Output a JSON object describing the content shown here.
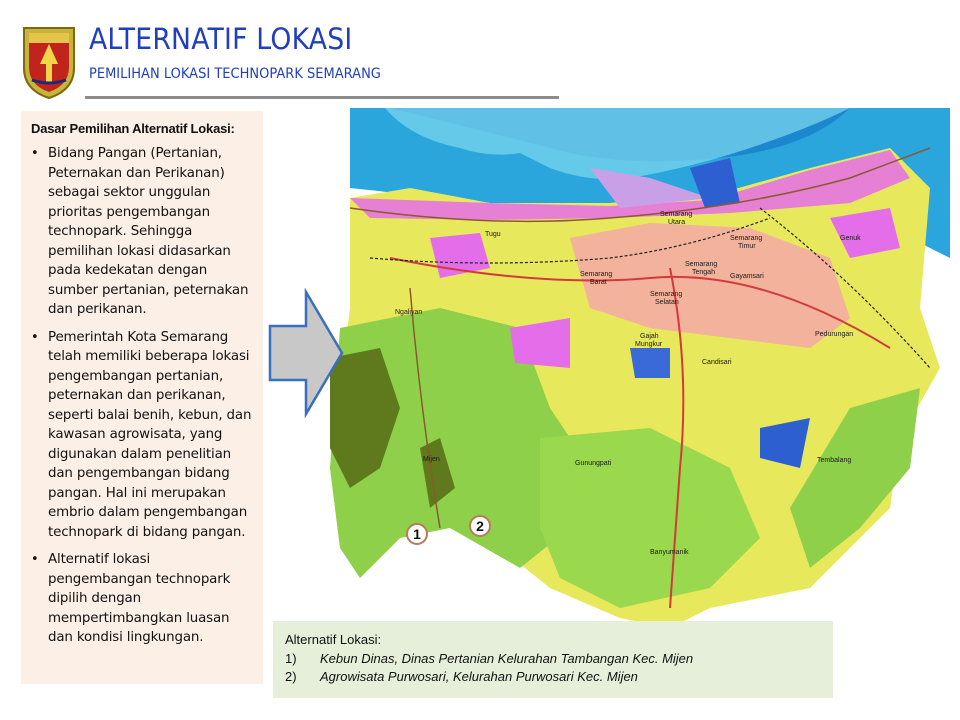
{
  "header": {
    "title": "ALTERNATIF LOKASI",
    "subtitle": "PEMILIHAN LOKASI TECHNOPARK SEMARANG"
  },
  "left_panel": {
    "heading": "Dasar Pemilihan Alternatif Lokasi:",
    "bullets": [
      "Bidang Pangan (Pertanian, Peternakan dan Perikanan) sebagai sektor unggulan prioritas pengembangan technopark. Sehingga pemilihan lokasi didasarkan pada kedekatan dengan sumber pertanian, peternakan dan perikanan.",
      "Pemerintah Kota Semarang telah memiliki beberapa lokasi pengembangan pertanian, peternakan dan perikanan, seperti balai benih, kebun, dan kawasan agrowisata, yang digunakan dalam penelitian dan pengembangan bidang pangan. Hal ini merupakan embrio dalam pengembangan technopark di bidang pangan.",
      "Alternatif lokasi pengembangan technopark dipilih dengan mempertimbangkan luasan dan kondisi lingkungan."
    ]
  },
  "map": {
    "labels": {
      "tugu": "Tugu",
      "semarang_utara_1": "Semarang",
      "semarang_utara_2": "Utara",
      "semarang_timur_1": "Semarang",
      "semarang_timur_2": "Timur",
      "semarang_barat_1": "Semarang",
      "semarang_barat_2": "Barat",
      "semarang_tengah_1": "Semarang",
      "semarang_tengah_2": "Tengah",
      "semarang_selatan_1": "Semarang",
      "semarang_selatan_2": "Selatan",
      "gayamsari": "Gayamsari",
      "genuk": "Genuk",
      "ngaliyan": "Ngaliyan",
      "gajah_mungkur_1": "Gajah",
      "gajah_mungkur_2": "Mungkur",
      "candisari": "Candisari",
      "pedurungan": "Pedurungan",
      "mijen": "Mijen",
      "gunungpati": "Gunungpati",
      "tembalang": "Tembalang",
      "banyumanik": "Banyumanik"
    },
    "markers": [
      "1",
      "2"
    ]
  },
  "bottom_panel": {
    "title": "Alternatif Lokasi:",
    "items": [
      {
        "num": "1)",
        "text": "Kebun Dinas, Dinas Pertanian Kelurahan Tambangan Kec. Mijen"
      },
      {
        "num": "2)",
        "text": "Agrowisata Purwosari, Kelurahan Purwosari Kec. Mijen"
      }
    ]
  },
  "colors": {
    "title_blue": "#1f3fbf",
    "left_panel_bg": "#fcefe6",
    "bottom_panel_bg": "#e6efda",
    "sea_dark": "#1ea0d8",
    "sea_light": "#7fd4ee",
    "land_yellow": "#ecec5a",
    "land_green": "#8fcf4a",
    "forest_dark": "#5e7a1c",
    "residential_pink": "#f07a8a",
    "industrial_magenta": "#e16be6",
    "water_blue": "#2e5fd1"
  }
}
